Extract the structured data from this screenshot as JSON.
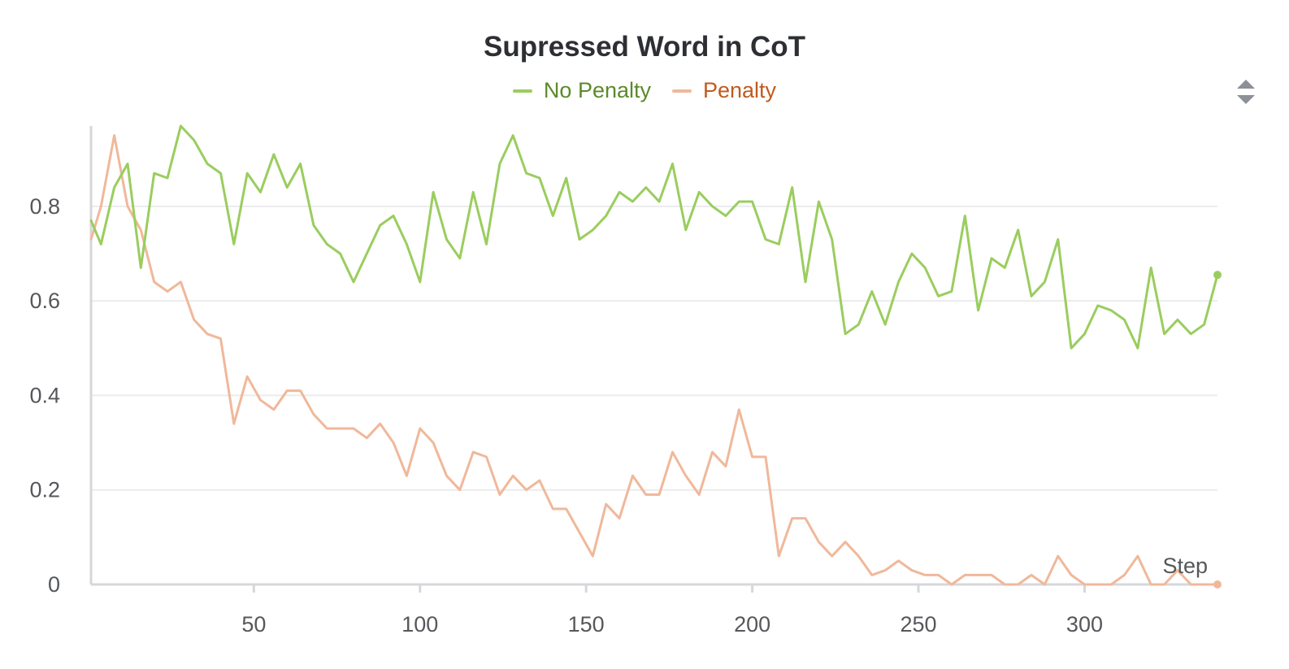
{
  "chart_data": {
    "type": "line",
    "title": "Supressed Word in CoT",
    "xlabel": "Step",
    "ylabel": "",
    "xlim": [
      1,
      340
    ],
    "ylim": [
      0,
      0.97
    ],
    "xticks": [
      50,
      100,
      150,
      200,
      250,
      300
    ],
    "yticks": [
      0,
      0.2,
      0.4,
      0.6,
      0.8
    ],
    "ytick_labels": [
      "0",
      "0.2",
      "0.4",
      "0.6",
      "0.8"
    ],
    "grid": true,
    "legend_position": "top-center",
    "x": [
      1,
      4,
      8,
      12,
      16,
      20,
      24,
      28,
      32,
      36,
      40,
      44,
      48,
      52,
      56,
      60,
      64,
      68,
      72,
      76,
      80,
      84,
      88,
      92,
      96,
      100,
      104,
      108,
      112,
      116,
      120,
      124,
      128,
      132,
      136,
      140,
      144,
      148,
      152,
      156,
      160,
      164,
      168,
      172,
      176,
      180,
      184,
      188,
      192,
      196,
      200,
      204,
      208,
      212,
      216,
      220,
      224,
      228,
      232,
      236,
      240,
      244,
      248,
      252,
      256,
      260,
      264,
      268,
      272,
      276,
      280,
      284,
      288,
      292,
      296,
      300,
      304,
      308,
      312,
      316,
      320,
      324,
      328,
      332,
      336,
      340
    ],
    "series": [
      {
        "name": "No Penalty",
        "color": "#9acd5e",
        "values": [
          0.77,
          0.72,
          0.84,
          0.89,
          0.67,
          0.87,
          0.86,
          0.97,
          0.94,
          0.89,
          0.87,
          0.72,
          0.87,
          0.83,
          0.91,
          0.84,
          0.89,
          0.76,
          0.72,
          0.7,
          0.64,
          0.7,
          0.76,
          0.78,
          0.72,
          0.64,
          0.83,
          0.73,
          0.69,
          0.83,
          0.72,
          0.89,
          0.95,
          0.87,
          0.86,
          0.78,
          0.86,
          0.73,
          0.75,
          0.78,
          0.83,
          0.81,
          0.84,
          0.81,
          0.89,
          0.75,
          0.83,
          0.8,
          0.78,
          0.81,
          0.81,
          0.73,
          0.72,
          0.84,
          0.64,
          0.81,
          0.73,
          0.53,
          0.55,
          0.62,
          0.55,
          0.64,
          0.7,
          0.67,
          0.61,
          0.62,
          0.78,
          0.58,
          0.69,
          0.67,
          0.75,
          0.61,
          0.64,
          0.73,
          0.5,
          0.53,
          0.59,
          0.58,
          0.56,
          0.5,
          0.67,
          0.53,
          0.56,
          0.53,
          0.55,
          0.655
        ]
      },
      {
        "name": "Penalty",
        "color": "#f0b89a",
        "values": [
          0.73,
          0.8,
          0.95,
          0.8,
          0.75,
          0.64,
          0.62,
          0.64,
          0.56,
          0.53,
          0.52,
          0.34,
          0.44,
          0.39,
          0.37,
          0.41,
          0.41,
          0.36,
          0.33,
          0.33,
          0.33,
          0.31,
          0.34,
          0.3,
          0.23,
          0.33,
          0.3,
          0.23,
          0.2,
          0.28,
          0.27,
          0.19,
          0.23,
          0.2,
          0.22,
          0.16,
          0.16,
          0.11,
          0.06,
          0.17,
          0.14,
          0.23,
          0.19,
          0.19,
          0.28,
          0.23,
          0.19,
          0.28,
          0.25,
          0.37,
          0.27,
          0.27,
          0.06,
          0.14,
          0.14,
          0.09,
          0.06,
          0.09,
          0.06,
          0.02,
          0.03,
          0.05,
          0.03,
          0.02,
          0.02,
          0.0,
          0.02,
          0.02,
          0.02,
          0.0,
          0.0,
          0.02,
          0.0,
          0.06,
          0.02,
          0.0,
          0.0,
          0.0,
          0.02,
          0.06,
          0.0,
          0.0,
          0.03,
          0.0,
          0.0,
          0.0
        ]
      }
    ]
  }
}
